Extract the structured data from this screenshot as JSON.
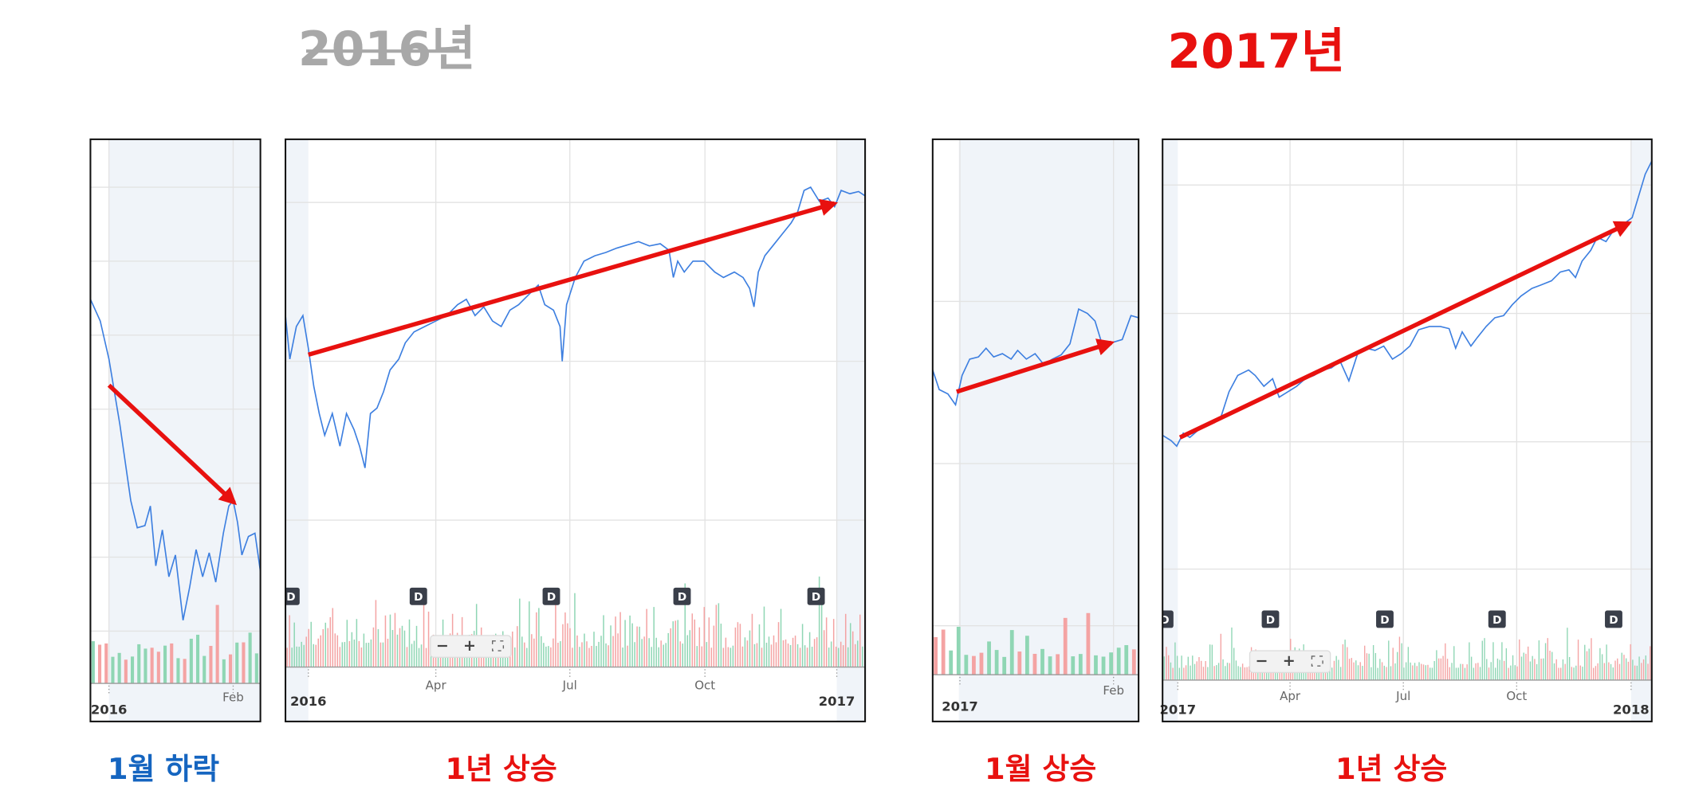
{
  "header": {
    "left_title": "2016년",
    "right_title": "2017년"
  },
  "panels": [
    {
      "ticks": [
        "2016",
        "Feb"
      ],
      "markers": [],
      "caption": "1월 하락"
    },
    {
      "ticks": [
        "2016",
        "Apr",
        "Jul",
        "Oct",
        "2017"
      ],
      "markers": [
        "D",
        "D",
        "D",
        "D",
        "D"
      ],
      "caption": "1년 상승"
    },
    {
      "ticks": [
        "2017",
        "Feb"
      ],
      "markers": [],
      "caption": "1월 상승"
    },
    {
      "ticks": [
        "2017",
        "Apr",
        "Jul",
        "Oct",
        "2018"
      ],
      "markers": [
        "D",
        "D",
        "D",
        "D",
        "D"
      ],
      "caption": "1년 상승"
    }
  ],
  "zoom_controls": [
    "−",
    "+"
  ]
}
